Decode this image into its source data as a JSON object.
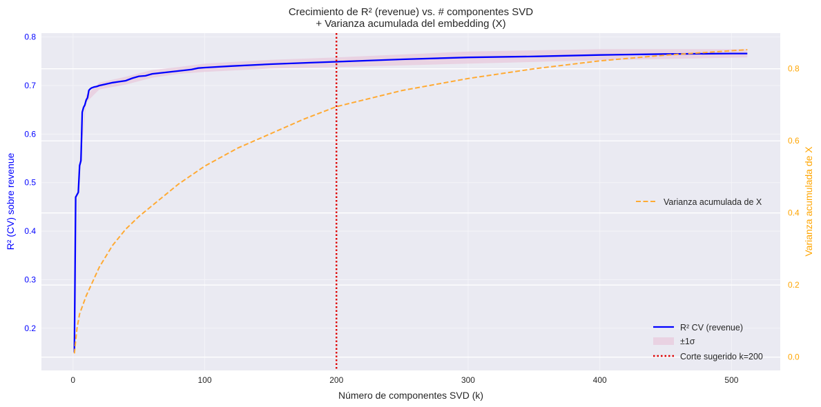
{
  "colors": {
    "r2_line": "#0000ff",
    "band": "#e8c9dc",
    "variance_line": "#ffaa33",
    "cut_line": "#dd0000",
    "plot_bg": "#eaeaf2",
    "left_axis": "#0000ff",
    "right_axis": "#ffa500"
  },
  "chart_data": {
    "type": "line",
    "title_line1": "Crecimiento de R² (revenue) vs. # componentes SVD",
    "title_line2": "+ Varianza acumulada del embedding (X)",
    "xlabel": "Número de componentes SVD (k)",
    "ylabel_left": "R² (CV) sobre revenue",
    "ylabel_right": "Varianza acumulada de X",
    "xlim": [
      -24,
      537
    ],
    "ylim_left": [
      0.113,
      0.808
    ],
    "ylim_right": [
      -0.037,
      0.899
    ],
    "x_ticks": [
      0,
      100,
      200,
      300,
      400,
      500
    ],
    "y_left_ticks": [
      0.2,
      0.3,
      0.4,
      0.5,
      0.6,
      0.7,
      0.8
    ],
    "y_right_ticks": [
      0.0,
      0.2,
      0.4,
      0.6,
      0.8
    ],
    "grid": true,
    "series": [
      {
        "name": "R² CV (revenue)",
        "axis": "left",
        "x": [
          1,
          2,
          3,
          4,
          5,
          6,
          7,
          8,
          9,
          10,
          11,
          12,
          13,
          14,
          16,
          18,
          20,
          25,
          30,
          35,
          40,
          45,
          50,
          55,
          60,
          70,
          80,
          90,
          95,
          100,
          120,
          150,
          180,
          200,
          250,
          300,
          350,
          400,
          450,
          500,
          512
        ],
        "y": [
          0.15,
          0.47,
          0.475,
          0.48,
          0.535,
          0.545,
          0.645,
          0.655,
          0.66,
          0.67,
          0.675,
          0.69,
          0.693,
          0.695,
          0.697,
          0.698,
          0.7,
          0.703,
          0.706,
          0.708,
          0.71,
          0.715,
          0.719,
          0.72,
          0.724,
          0.727,
          0.73,
          0.733,
          0.736,
          0.737,
          0.74,
          0.744,
          0.747,
          0.749,
          0.754,
          0.758,
          0.76,
          0.763,
          0.765,
          0.766,
          0.766
        ]
      },
      {
        "name": "±1σ",
        "axis": "left",
        "x": [
          1,
          5,
          10,
          20,
          40,
          60,
          80,
          100,
          150,
          200,
          300,
          400,
          512
        ],
        "lower": [
          0.14,
          0.525,
          0.665,
          0.692,
          0.702,
          0.716,
          0.724,
          0.728,
          0.735,
          0.738,
          0.745,
          0.752,
          0.758
        ],
        "upper": [
          0.16,
          0.545,
          0.68,
          0.706,
          0.718,
          0.732,
          0.738,
          0.745,
          0.753,
          0.758,
          0.77,
          0.775,
          0.775
        ]
      },
      {
        "name": "Varianza acumulada de X",
        "axis": "right",
        "x": [
          1,
          3,
          5,
          10,
          20,
          30,
          40,
          50,
          60,
          80,
          100,
          125,
          150,
          175,
          200,
          250,
          300,
          350,
          400,
          450,
          512
        ],
        "y": [
          0.01,
          0.08,
          0.12,
          0.17,
          0.25,
          0.31,
          0.355,
          0.39,
          0.42,
          0.48,
          0.53,
          0.58,
          0.62,
          0.66,
          0.695,
          0.74,
          0.773,
          0.8,
          0.822,
          0.838,
          0.853
        ]
      }
    ],
    "vline": {
      "name": "Corte sugerido k=200",
      "x": 200
    },
    "legend_right": {
      "label": "Varianza acumulada de X",
      "placement": "center-right"
    },
    "legend_left": {
      "items": [
        "R² CV (revenue)",
        "±1σ",
        "Corte sugerido k=200"
      ],
      "placement": "lower-right"
    }
  }
}
